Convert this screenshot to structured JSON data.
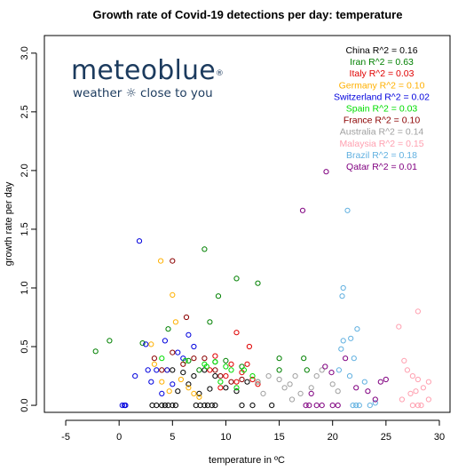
{
  "chart_data": {
    "type": "scatter",
    "title": "Growth rate of Covid-19 detections per day: temperature",
    "xlabel": "temperature in ºC",
    "ylabel": "growth rate per day",
    "xlim": [
      -7,
      31
    ],
    "ylim": [
      -0.06,
      3.15
    ],
    "xticks": [
      -5,
      0,
      5,
      10,
      15,
      20,
      25,
      30
    ],
    "yticks": [
      0.0,
      0.5,
      1.0,
      1.5,
      2.0,
      2.5,
      3.0
    ],
    "legend_position": "top-right",
    "grid": false,
    "series": [
      {
        "name": "China R^2 = 0.16",
        "color": "#000000",
        "points": [
          [
            3.1,
            0
          ],
          [
            3.5,
            0
          ],
          [
            4.0,
            0
          ],
          [
            4.3,
            0
          ],
          [
            4.6,
            0
          ],
          [
            5.0,
            0
          ],
          [
            5.3,
            0
          ],
          [
            7.2,
            0
          ],
          [
            7.6,
            0
          ],
          [
            8.0,
            0
          ],
          [
            8.3,
            0
          ],
          [
            8.7,
            0
          ],
          [
            9.0,
            0
          ],
          [
            11.5,
            0
          ],
          [
            12.5,
            0
          ],
          [
            14.3,
            0
          ],
          [
            5.0,
            0.3
          ],
          [
            6.0,
            0.28
          ],
          [
            7.0,
            0.25
          ],
          [
            8.0,
            0.3
          ],
          [
            9.0,
            0.25
          ],
          [
            10.0,
            0.15
          ],
          [
            11.0,
            0.12
          ],
          [
            12.0,
            0.2
          ],
          [
            6.5,
            0.18
          ],
          [
            5.5,
            0.12
          ],
          [
            7.5,
            0.1
          ],
          [
            8.5,
            0.14
          ]
        ]
      },
      {
        "name": "Iran R^2 = 0.63",
        "color": "#008000",
        "points": [
          [
            -2.2,
            0.46
          ],
          [
            -0.9,
            0.55
          ],
          [
            2.2,
            0.53
          ],
          [
            4.6,
            0.65
          ],
          [
            8.0,
            1.33
          ],
          [
            8.5,
            0.71
          ],
          [
            9.3,
            0.93
          ],
          [
            11.0,
            1.08
          ],
          [
            13.0,
            1.04
          ],
          [
            9.0,
            0.37
          ],
          [
            10.0,
            0.38
          ],
          [
            11.5,
            0.33
          ],
          [
            13.0,
            0.2
          ],
          [
            15.0,
            0.4
          ],
          [
            15.0,
            0.3
          ],
          [
            17.3,
            0.4
          ],
          [
            17.6,
            0.3
          ],
          [
            6.5,
            0.38
          ],
          [
            7.5,
            0.3
          ]
        ]
      },
      {
        "name": "Italy R^2 = 0.03",
        "color": "#e00000",
        "points": [
          [
            11.0,
            0.62
          ],
          [
            12.2,
            0.5
          ],
          [
            9.0,
            0.42
          ],
          [
            10.5,
            0.35
          ],
          [
            11.5,
            0.28
          ],
          [
            12.5,
            0.22
          ],
          [
            13.0,
            0.18
          ],
          [
            9.5,
            0.15
          ],
          [
            10.0,
            0.25
          ],
          [
            11.0,
            0.2
          ],
          [
            12.0,
            0.35
          ],
          [
            8.5,
            0.3
          ]
        ]
      },
      {
        "name": "Germany R^2 = 0.10",
        "color": "#ffb000",
        "points": [
          [
            3.9,
            1.23
          ],
          [
            5.0,
            0.94
          ],
          [
            5.3,
            0.71
          ],
          [
            3.0,
            0.52
          ],
          [
            3.3,
            0.35
          ],
          [
            4.0,
            0.2
          ],
          [
            4.5,
            0.3
          ],
          [
            5.8,
            0.22
          ],
          [
            6.5,
            0.15
          ],
          [
            7.0,
            0.1
          ],
          [
            7.5,
            0.07
          ],
          [
            4.7,
            0.12
          ]
        ]
      },
      {
        "name": "Switzerland R^2 = 0.02",
        "color": "#0000dd",
        "points": [
          [
            1.9,
            1.4
          ],
          [
            2.5,
            0.52
          ],
          [
            4.3,
            0.55
          ],
          [
            0.3,
            0
          ],
          [
            0.5,
            0
          ],
          [
            0.6,
            0
          ],
          [
            1.5,
            0.25
          ],
          [
            2.7,
            0.3
          ],
          [
            3.5,
            0.3
          ],
          [
            4.5,
            0.3
          ],
          [
            5.5,
            0.45
          ],
          [
            6.0,
            0.4
          ],
          [
            6.5,
            0.6
          ],
          [
            7.0,
            0.5
          ],
          [
            5.0,
            0.18
          ],
          [
            4.0,
            0.1
          ],
          [
            3.0,
            0.2
          ]
        ]
      },
      {
        "name": "Spain R^2 = 0.03",
        "color": "#00dd00",
        "points": [
          [
            4.0,
            0.4
          ],
          [
            6.2,
            0.38
          ],
          [
            8.0,
            0.35
          ],
          [
            8.2,
            0.33
          ],
          [
            9.0,
            0.37
          ],
          [
            10.5,
            0.3
          ],
          [
            11.7,
            0.3
          ],
          [
            12.5,
            0.25
          ],
          [
            9.5,
            0.2
          ],
          [
            11.0,
            0.15
          ],
          [
            10.0,
            0.33
          ]
        ]
      },
      {
        "name": "France R^2 = 0.10",
        "color": "#8b0000",
        "points": [
          [
            5.0,
            1.23
          ],
          [
            6.3,
            0.75
          ],
          [
            3.3,
            0.4
          ],
          [
            4.0,
            0.3
          ],
          [
            5.0,
            0.45
          ],
          [
            6.0,
            0.35
          ],
          [
            7.0,
            0.4
          ],
          [
            8.0,
            0.4
          ],
          [
            9.0,
            0.3
          ],
          [
            9.5,
            0.25
          ],
          [
            10.5,
            0.2
          ],
          [
            11.5,
            0.22
          ]
        ]
      },
      {
        "name": "Australia R^2 = 0.14",
        "color": "#a0a0a0",
        "points": [
          [
            13.0,
            0.2
          ],
          [
            14.0,
            0.25
          ],
          [
            15.0,
            0.22
          ],
          [
            15.5,
            0.15
          ],
          [
            16.0,
            0.18
          ],
          [
            16.5,
            0.25
          ],
          [
            17.0,
            0.1
          ],
          [
            18.0,
            0.15
          ],
          [
            18.5,
            0.25
          ],
          [
            19.0,
            0.3
          ],
          [
            20.0,
            0.18
          ],
          [
            20.5,
            0.12
          ],
          [
            16.2,
            0.05
          ],
          [
            13.5,
            0.1
          ]
        ]
      },
      {
        "name": "Malaysia R^2 = 0.15",
        "color": "#ffa0b0",
        "points": [
          [
            28.0,
            0.8
          ],
          [
            26.2,
            0.67
          ],
          [
            26.7,
            0.38
          ],
          [
            27.0,
            0.3
          ],
          [
            27.5,
            0.25
          ],
          [
            28.0,
            0.22
          ],
          [
            28.5,
            0.15
          ],
          [
            29.0,
            0.2
          ],
          [
            27.3,
            0.1
          ],
          [
            26.5,
            0.05
          ],
          [
            27.5,
            0
          ],
          [
            28.0,
            0
          ],
          [
            28.3,
            0
          ],
          [
            29.0,
            0.05
          ],
          [
            27.8,
            0.12
          ]
        ]
      },
      {
        "name": "Brazil R^2 = 0.18",
        "color": "#60b0e0",
        "points": [
          [
            21.4,
            1.66
          ],
          [
            21.0,
            1.0
          ],
          [
            20.9,
            0.93
          ],
          [
            21.7,
            0.57
          ],
          [
            22.3,
            0.65
          ],
          [
            21.0,
            0.55
          ],
          [
            20.8,
            0.48
          ],
          [
            22.0,
            0.4
          ],
          [
            20.6,
            0.3
          ],
          [
            21.6,
            0.25
          ],
          [
            23.0,
            0.2
          ],
          [
            21.9,
            0
          ],
          [
            22.2,
            0
          ],
          [
            22.5,
            0
          ],
          [
            23.5,
            0
          ],
          [
            24.0,
            0.02
          ]
        ]
      },
      {
        "name": "Qatar R^2 = 0.01",
        "color": "#800080",
        "points": [
          [
            19.4,
            1.99
          ],
          [
            17.2,
            1.66
          ],
          [
            19.3,
            0.33
          ],
          [
            19.9,
            0.28
          ],
          [
            21.2,
            0.4
          ],
          [
            24.5,
            0.2
          ],
          [
            25.0,
            0.22
          ],
          [
            17.5,
            0
          ],
          [
            17.8,
            0
          ],
          [
            18.5,
            0
          ],
          [
            19.0,
            0
          ],
          [
            20.0,
            0
          ],
          [
            20.5,
            0
          ],
          [
            24.0,
            0.05
          ],
          [
            22.2,
            0.15
          ],
          [
            23.3,
            0.12
          ],
          [
            18.0,
            0.1
          ]
        ]
      }
    ]
  },
  "logo": {
    "name": "meteoblue",
    "registered": "®",
    "tagline": "weather ☼ close to you"
  }
}
